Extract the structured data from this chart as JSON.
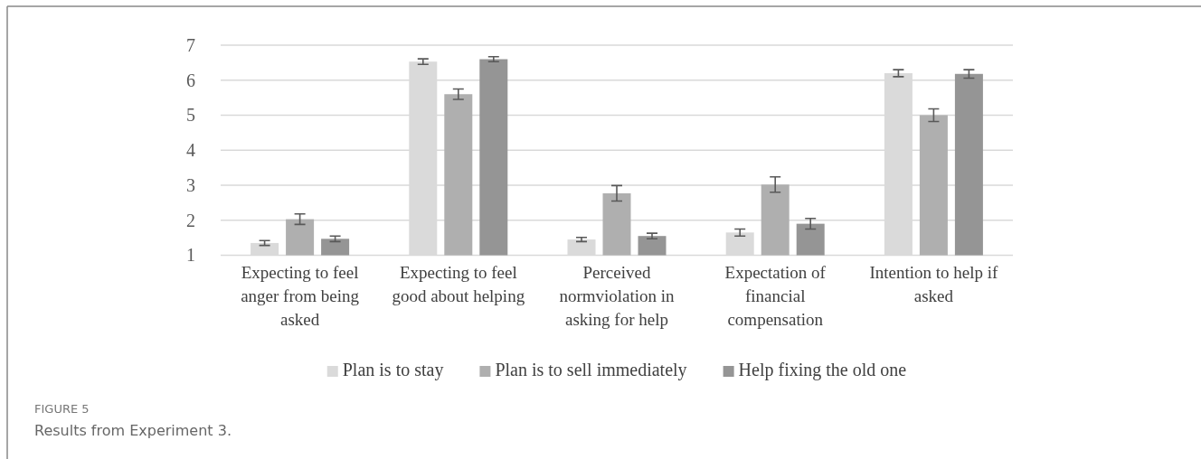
{
  "chart_data": {
    "type": "bar",
    "categories": [
      "Expecting to feel anger from being asked",
      "Expecting to feel good about helping",
      "Perceived normviolation in asking for help",
      "Expectation of financial compensation",
      "Intention to help if asked"
    ],
    "series": [
      {
        "name": "Plan is to stay",
        "color": "#dadada",
        "values": [
          1.35,
          6.53,
          1.45,
          1.65,
          6.2
        ],
        "errors": [
          0.07,
          0.08,
          0.06,
          0.1,
          0.1
        ]
      },
      {
        "name": "Plan is to sell immediately",
        "color": "#afafaf",
        "values": [
          2.03,
          5.6,
          2.77,
          3.02,
          5.0
        ],
        "errors": [
          0.15,
          0.15,
          0.22,
          0.22,
          0.18
        ]
      },
      {
        "name": "Help fixing the old one",
        "color": "#959595",
        "values": [
          1.47,
          6.6,
          1.55,
          1.9,
          6.18
        ],
        "errors": [
          0.08,
          0.07,
          0.08,
          0.15,
          0.12
        ]
      }
    ],
    "ylim": [
      1,
      7
    ],
    "yticks": [
      1,
      2,
      3,
      4,
      5,
      6,
      7
    ],
    "grid": "y",
    "legend": "bottom",
    "annotations": [
      "FIGURE 5",
      "Results from Experiment 3."
    ]
  }
}
